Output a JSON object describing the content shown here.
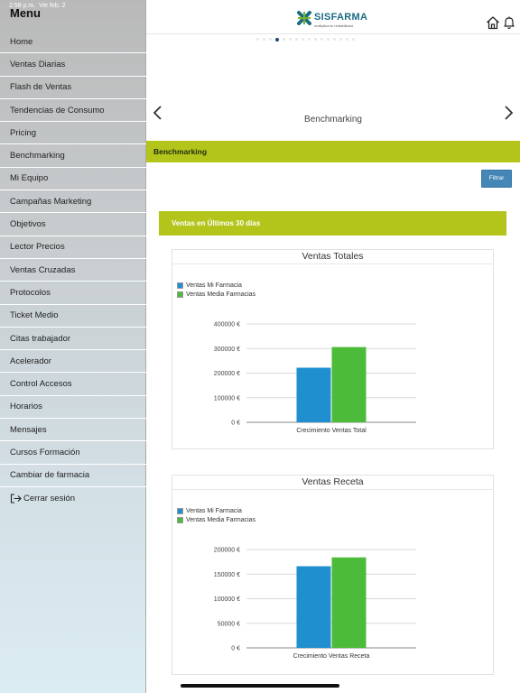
{
  "statusbar": {
    "time": "2:58 p.m.",
    "date": "Vie feb. 2",
    "battery": "100%"
  },
  "menu": {
    "title": "Menu",
    "items": [
      "Home",
      "Ventas Diarias",
      "Flash de Ventas",
      "Tendencias de Consumo",
      "Pricing",
      "Benchmarking",
      "Mi Equipo",
      "Campañas Marketing",
      "Objetivos",
      "Lector Precios",
      "Ventas Cruzadas",
      "Protocolos",
      "Ticket Medio",
      "Citas trabajador",
      "Acelerador",
      "Control Accesos",
      "Horarios",
      "Mensajes",
      "Cursos Formación",
      "Cambiar de farmacia"
    ],
    "logout": "Cerrar sesión"
  },
  "header": {
    "brand": "SISFARMA",
    "tagline": "multiplica tu rentabilidad",
    "brand_color": "#1a6c85"
  },
  "carousel": {
    "title": "Benchmarking",
    "page_count": 16,
    "active_index": 3
  },
  "section": {
    "title": "Benchmarking",
    "color": "#b3c51b"
  },
  "filter_button": "Filtrar",
  "panel": {
    "title": "Ventas en Últimos 30 días"
  },
  "chart_data": [
    {
      "type": "bar",
      "title": "Ventas Totales",
      "categories": [
        "Crecimiento Ventas Total"
      ],
      "series": [
        {
          "name": "Ventas Mi Farmacia",
          "values": [
            222000
          ],
          "color": "#1f8fcf"
        },
        {
          "name": "Ventas Media Farmacias",
          "values": [
            306000
          ],
          "color": "#4dbb3a"
        }
      ],
      "yticks": [
        "400000 €",
        "300000 €",
        "200000 €",
        "100000 €",
        "0 €"
      ],
      "ylim": [
        0,
        400000
      ],
      "legend": "top-left"
    },
    {
      "type": "bar",
      "title": "Ventas Receta",
      "categories": [
        "Crecimiento Ventas Receta"
      ],
      "series": [
        {
          "name": "Ventas Mi Farmacia",
          "values": [
            166000
          ],
          "color": "#1f8fcf"
        },
        {
          "name": "Ventas Media Farmacias",
          "values": [
            184000
          ],
          "color": "#4dbb3a"
        }
      ],
      "yticks": [
        "200000 €",
        "150000 €",
        "100000 €",
        "50000 €",
        "0 €"
      ],
      "ylim": [
        0,
        200000
      ],
      "legend": "top-left"
    }
  ]
}
